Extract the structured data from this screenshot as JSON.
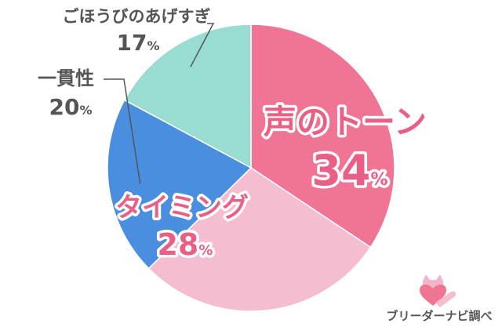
{
  "chart_data": {
    "type": "pie",
    "slices": [
      {
        "label": "声のトーン",
        "value": 34,
        "color": "#f07594",
        "text_color": "#ea5f86",
        "display": "inner",
        "pct_suffix": "%"
      },
      {
        "label": "タイミング",
        "value": 28,
        "color": "#f4bdd0",
        "text_color": "#ea5f86",
        "display": "inner",
        "pct_suffix": "%"
      },
      {
        "label": "一貫性",
        "value": 20,
        "color": "#4a8ee0",
        "text_color": "#555555",
        "display": "outer",
        "pct_suffix": "%"
      },
      {
        "label": "ごほうびのあげすぎ",
        "value": 17,
        "color": "#99dcd2",
        "text_color": "#555555",
        "display": "outer",
        "pct_suffix": "%"
      }
    ]
  },
  "credit": {
    "text": "ブリーダーナビ調べ",
    "logo_icon": "cat-heart-logo-icon"
  }
}
